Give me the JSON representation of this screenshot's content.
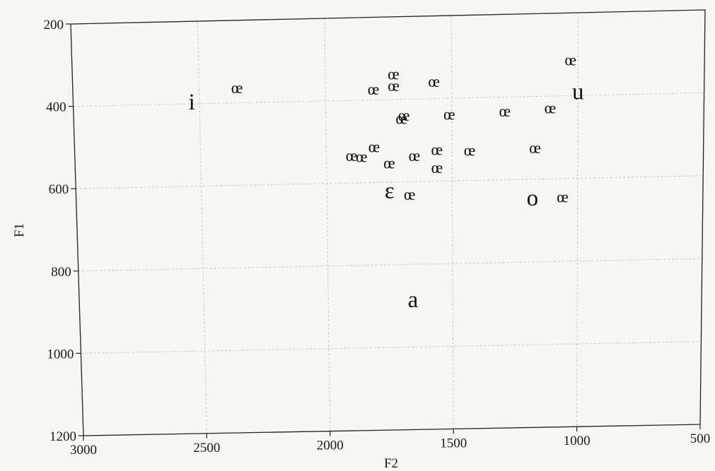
{
  "chart_data": {
    "type": "scatter",
    "title": "",
    "xlabel": "F2",
    "ylabel": "F1",
    "xlim": [
      3000,
      500
    ],
    "ylim": [
      200,
      1200
    ],
    "x_reversed": true,
    "y_reversed": true,
    "grid": true,
    "xticks": [
      3000,
      2500,
      2000,
      1500,
      1000,
      500
    ],
    "yticks": [
      200,
      400,
      600,
      800,
      1000,
      1200
    ],
    "vowels": [
      {
        "label": "i",
        "x": 2530,
        "y": 395
      },
      {
        "label": "u",
        "x": 1000,
        "y": 390
      },
      {
        "label": "ε",
        "x": 1750,
        "y": 620
      },
      {
        "label": "o",
        "x": 1180,
        "y": 645
      },
      {
        "label": "a",
        "x": 1660,
        "y": 885
      }
    ],
    "tokens": [
      {
        "label": "œ",
        "x": 2350,
        "y": 365
      },
      {
        "label": "œ",
        "x": 1810,
        "y": 375
      },
      {
        "label": "œ",
        "x": 1730,
        "y": 340
      },
      {
        "label": "œ",
        "x": 1730,
        "y": 368
      },
      {
        "label": "œ",
        "x": 1570,
        "y": 360
      },
      {
        "label": "œ",
        "x": 1030,
        "y": 315
      },
      {
        "label": "œ",
        "x": 1690,
        "y": 440
      },
      {
        "label": "œ",
        "x": 1700,
        "y": 448
      },
      {
        "label": "œ",
        "x": 1510,
        "y": 440
      },
      {
        "label": "œ",
        "x": 1290,
        "y": 435
      },
      {
        "label": "œ",
        "x": 1110,
        "y": 430
      },
      {
        "label": "œ",
        "x": 1810,
        "y": 515
      },
      {
        "label": "œ",
        "x": 1900,
        "y": 535
      },
      {
        "label": "œ",
        "x": 1860,
        "y": 538
      },
      {
        "label": "œ",
        "x": 1750,
        "y": 555
      },
      {
        "label": "œ",
        "x": 1650,
        "y": 538
      },
      {
        "label": "œ",
        "x": 1560,
        "y": 525
      },
      {
        "label": "œ",
        "x": 1560,
        "y": 568
      },
      {
        "label": "œ",
        "x": 1430,
        "y": 528
      },
      {
        "label": "œ",
        "x": 1170,
        "y": 525
      },
      {
        "label": "œ",
        "x": 1670,
        "y": 632
      },
      {
        "label": "œ",
        "x": 1060,
        "y": 645
      }
    ]
  }
}
